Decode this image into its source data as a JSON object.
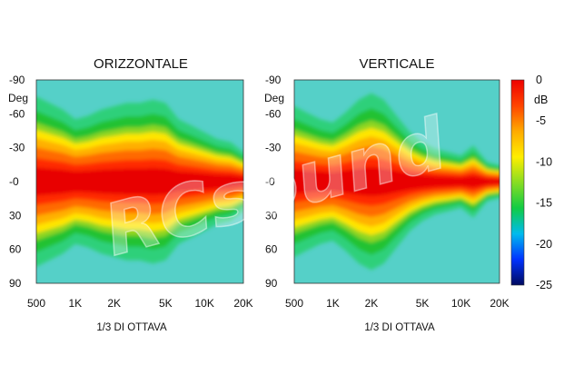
{
  "chart_data": [
    {
      "type": "heatmap",
      "title": "ORIZZONTALE",
      "ylabel_unit": "Deg",
      "y_tick_labels": [
        "-90",
        "-60",
        "-30",
        "-0",
        "30",
        "60",
        "90"
      ],
      "y_tick_values": [
        -90,
        -60,
        -30,
        0,
        30,
        60,
        90
      ],
      "x_tick_labels": [
        "500",
        "1K",
        "2K",
        "5K",
        "10K",
        "20K"
      ],
      "x_tick_values": [
        500,
        1000,
        2000,
        5000,
        10000,
        20000
      ],
      "xlabel": "1/3 DI OTTAVA",
      "x_scale": "log",
      "xlim": [
        500,
        20000
      ],
      "ylim": [
        -90,
        90
      ],
      "z_unit": "dB",
      "zlim": [
        -25,
        0
      ],
      "beamwidth_profile": {
        "freq": [
          500,
          630,
          800,
          1000,
          1250,
          1600,
          2000,
          2500,
          3150,
          4000,
          5000,
          6300,
          8000,
          10000,
          12500,
          16000,
          20000
        ],
        "half_width_deg_minus6dB": [
          52,
          48,
          44,
          38,
          40,
          44,
          46,
          48,
          48,
          50,
          48,
          38,
          34,
          30,
          26,
          24,
          18
        ]
      }
    },
    {
      "type": "heatmap",
      "title": "VERTICALE",
      "ylabel_unit": "Deg",
      "y_tick_labels": [
        "-90",
        "-60",
        "-30",
        "-0",
        "30",
        "60",
        "90"
      ],
      "y_tick_values": [
        -90,
        -60,
        -30,
        0,
        30,
        60,
        90
      ],
      "x_tick_labels": [
        "500",
        "1K",
        "2K",
        "5K",
        "10K",
        "20K"
      ],
      "x_tick_values": [
        500,
        1000,
        2000,
        5000,
        10000,
        20000
      ],
      "xlabel": "1/3 DI OTTAVA",
      "x_scale": "log",
      "xlim": [
        500,
        20000
      ],
      "ylim": [
        -90,
        90
      ],
      "z_unit": "dB",
      "zlim": [
        -25,
        0
      ],
      "beamwidth_profile": {
        "freq": [
          500,
          630,
          800,
          1000,
          1250,
          1600,
          2000,
          2500,
          3150,
          4000,
          5000,
          6300,
          8000,
          10000,
          12500,
          16000,
          20000
        ],
        "half_width_deg_minus6dB": [
          46,
          42,
          38,
          36,
          42,
          50,
          54,
          50,
          40,
          30,
          24,
          20,
          18,
          16,
          22,
          12,
          10
        ]
      }
    }
  ],
  "colorbar": {
    "ticks": [
      "0",
      "-5",
      "-10",
      "-15",
      "-20",
      "-25"
    ],
    "tick_values": [
      0,
      -5,
      -10,
      -15,
      -20,
      -25
    ],
    "unit": "dB",
    "colors": [
      "#000a60",
      "#0033ff",
      "#00bbee",
      "#11cc44",
      "#88dd22",
      "#ffee00",
      "#ffaa00",
      "#ff4400",
      "#ee0000"
    ]
  },
  "watermark": "RCsound"
}
